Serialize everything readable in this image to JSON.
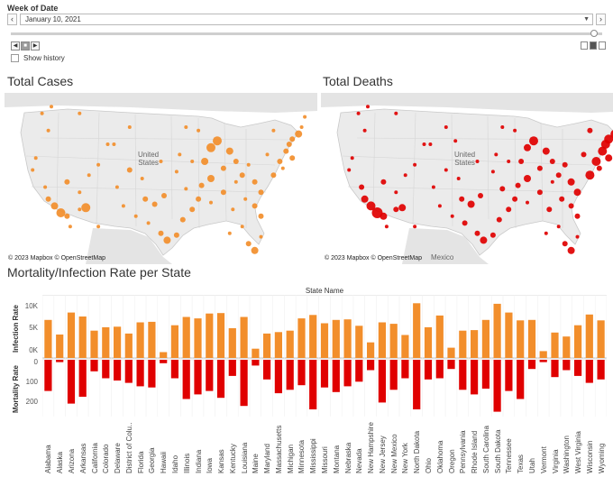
{
  "filter": {
    "title": "Week of Date",
    "selected_value": "January 10, 2021",
    "prev_label": "‹",
    "next_label": "›",
    "show_history_label": "Show history",
    "show_history_checked": false,
    "slider_position": 1.0
  },
  "maps": {
    "cases_title": "Total Cases",
    "deaths_title": "Total Deaths",
    "credit": "© 2023 Mapbox © OpenStreetMap",
    "country_label_line1": "United",
    "country_label_line2": "States",
    "mexico_label": "Mexico",
    "cases_color": "#f28e2b",
    "deaths_color": "#e00000",
    "land_color": "#ebebeb",
    "water_color": "#ffffff"
  },
  "bars_section": {
    "title": "Mortality/Infection Rate per State",
    "column_header": "State Name",
    "infection_axis_title": "Infection Rate",
    "mortality_axis_title": "Mortality Rate",
    "infection_ticks": [
      "10K",
      "5K",
      "0K"
    ],
    "mortality_ticks": [
      "0",
      "100",
      "200"
    ]
  },
  "chart_data": {
    "type": "bar",
    "title": "Mortality/Infection Rate per State",
    "xlabel": "State Name",
    "categories": [
      "Alabama",
      "Alaska",
      "Arizona",
      "Arkansas",
      "California",
      "Colorado",
      "Delaware",
      "District of Colu..",
      "Florida",
      "Georgia",
      "Hawaii",
      "Idaho",
      "Illinois",
      "Indiana",
      "Iowa",
      "Kansas",
      "Kentucky",
      "Louisiana",
      "Maine",
      "Maryland",
      "Massachusetts",
      "Michigan",
      "Minnesota",
      "Mississippi",
      "Missouri",
      "Montana",
      "Nebraska",
      "Nevada",
      "New Hampshire",
      "New Jersey",
      "New Mexico",
      "New York",
      "North Dakota",
      "Ohio",
      "Oklahoma",
      "Oregon",
      "Pennsylvania",
      "Rhode Island",
      "South Carolina",
      "South Dakota",
      "Tennessee",
      "Texas",
      "Utah",
      "Vermont",
      "Virginia",
      "Washington",
      "West Virginia",
      "Wisconsin",
      "Wyoming"
    ],
    "series": [
      {
        "name": "Infection Rate",
        "color": "#f28e2b",
        "ylim": [
          0,
          12000
        ],
        "values": [
          7800,
          4800,
          9300,
          8500,
          5600,
          6300,
          6400,
          5000,
          7300,
          7400,
          1200,
          6700,
          8400,
          8100,
          9100,
          9200,
          6100,
          8400,
          1900,
          5000,
          5300,
          5600,
          8100,
          8800,
          7100,
          7800,
          7900,
          6600,
          3200,
          7300,
          7000,
          4700,
          11200,
          6300,
          8700,
          2100,
          5600,
          5700,
          7800,
          11100,
          9300,
          7700,
          7800,
          1400,
          5200,
          4400,
          6700,
          8900,
          7700
        ]
      },
      {
        "name": "Mortality Rate",
        "color": "#e00000",
        "ylim": [
          0,
          250
        ],
        "values": [
          135,
          10,
          190,
          160,
          50,
          80,
          90,
          100,
          115,
          120,
          15,
          80,
          170,
          150,
          135,
          165,
          70,
          200,
          25,
          85,
          145,
          130,
          110,
          215,
          120,
          140,
          115,
          95,
          45,
          185,
          130,
          80,
          215,
          85,
          80,
          40,
          130,
          150,
          125,
          225,
          135,
          170,
          40,
          10,
          75,
          45,
          70,
          100,
          85
        ]
      }
    ]
  },
  "map_points": {
    "cases": [
      [
        0.12,
        0.12,
        2
      ],
      [
        0.15,
        0.08,
        2
      ],
      [
        0.14,
        0.22,
        2
      ],
      [
        0.1,
        0.38,
        2
      ],
      [
        0.09,
        0.45,
        2
      ],
      [
        0.13,
        0.55,
        2
      ],
      [
        0.14,
        0.62,
        3
      ],
      [
        0.16,
        0.66,
        4
      ],
      [
        0.18,
        0.7,
        5
      ],
      [
        0.2,
        0.72,
        3
      ],
      [
        0.21,
        0.78,
        2
      ],
      [
        0.24,
        0.68,
        2
      ],
      [
        0.26,
        0.67,
        5
      ],
      [
        0.24,
        0.58,
        2
      ],
      [
        0.2,
        0.52,
        3
      ],
      [
        0.3,
        0.42,
        2
      ],
      [
        0.33,
        0.3,
        2
      ],
      [
        0.27,
        0.48,
        2
      ],
      [
        0.36,
        0.55,
        2
      ],
      [
        0.4,
        0.45,
        3
      ],
      [
        0.45,
        0.62,
        3
      ],
      [
        0.48,
        0.65,
        3
      ],
      [
        0.51,
        0.6,
        3
      ],
      [
        0.46,
        0.76,
        2
      ],
      [
        0.5,
        0.82,
        3
      ],
      [
        0.52,
        0.86,
        4
      ],
      [
        0.55,
        0.83,
        3
      ],
      [
        0.57,
        0.74,
        3
      ],
      [
        0.6,
        0.68,
        3
      ],
      [
        0.62,
        0.62,
        3
      ],
      [
        0.58,
        0.56,
        2
      ],
      [
        0.63,
        0.54,
        3
      ],
      [
        0.66,
        0.5,
        4
      ],
      [
        0.64,
        0.4,
        4
      ],
      [
        0.66,
        0.32,
        5
      ],
      [
        0.68,
        0.28,
        5
      ],
      [
        0.72,
        0.34,
        4
      ],
      [
        0.74,
        0.4,
        3
      ],
      [
        0.7,
        0.44,
        3
      ],
      [
        0.76,
        0.48,
        3
      ],
      [
        0.8,
        0.52,
        3
      ],
      [
        0.82,
        0.58,
        3
      ],
      [
        0.86,
        0.48,
        3
      ],
      [
        0.88,
        0.4,
        3
      ],
      [
        0.9,
        0.34,
        3
      ],
      [
        0.91,
        0.3,
        3
      ],
      [
        0.92,
        0.27,
        3
      ],
      [
        0.94,
        0.24,
        4
      ],
      [
        0.95,
        0.2,
        2
      ],
      [
        0.92,
        0.38,
        3
      ],
      [
        0.89,
        0.44,
        2
      ],
      [
        0.84,
        0.36,
        2
      ],
      [
        0.78,
        0.42,
        2
      ],
      [
        0.74,
        0.52,
        2
      ],
      [
        0.7,
        0.58,
        3
      ],
      [
        0.66,
        0.64,
        2
      ],
      [
        0.73,
        0.68,
        2
      ],
      [
        0.77,
        0.62,
        2
      ],
      [
        0.8,
        0.66,
        3
      ],
      [
        0.82,
        0.72,
        3
      ],
      [
        0.76,
        0.78,
        2
      ],
      [
        0.72,
        0.82,
        2
      ],
      [
        0.78,
        0.88,
        3
      ],
      [
        0.8,
        0.92,
        4
      ],
      [
        0.82,
        0.84,
        2
      ],
      [
        0.6,
        0.4,
        2
      ],
      [
        0.56,
        0.36,
        2
      ],
      [
        0.62,
        0.22,
        2
      ],
      [
        0.58,
        0.2,
        2
      ],
      [
        0.55,
        0.46,
        2
      ],
      [
        0.5,
        0.4,
        2
      ],
      [
        0.44,
        0.5,
        2
      ],
      [
        0.38,
        0.66,
        2
      ],
      [
        0.42,
        0.72,
        2
      ],
      [
        0.35,
        0.3,
        2
      ],
      [
        0.4,
        0.2,
        2
      ],
      [
        0.24,
        0.12,
        2
      ],
      [
        0.3,
        0.78,
        2
      ],
      [
        0.86,
        0.22,
        2
      ],
      [
        0.96,
        0.14,
        2
      ]
    ],
    "deaths": [
      [
        0.12,
        0.12,
        2
      ],
      [
        0.15,
        0.08,
        2
      ],
      [
        0.14,
        0.22,
        2
      ],
      [
        0.1,
        0.38,
        2
      ],
      [
        0.09,
        0.45,
        2
      ],
      [
        0.13,
        0.55,
        3
      ],
      [
        0.14,
        0.62,
        4
      ],
      [
        0.16,
        0.66,
        5
      ],
      [
        0.18,
        0.7,
        6
      ],
      [
        0.2,
        0.72,
        4
      ],
      [
        0.21,
        0.78,
        2
      ],
      [
        0.24,
        0.68,
        3
      ],
      [
        0.26,
        0.67,
        4
      ],
      [
        0.24,
        0.58,
        2
      ],
      [
        0.2,
        0.52,
        3
      ],
      [
        0.3,
        0.42,
        2
      ],
      [
        0.33,
        0.3,
        2
      ],
      [
        0.27,
        0.48,
        2
      ],
      [
        0.36,
        0.55,
        2
      ],
      [
        0.4,
        0.45,
        2
      ],
      [
        0.45,
        0.62,
        3
      ],
      [
        0.48,
        0.65,
        4
      ],
      [
        0.51,
        0.6,
        3
      ],
      [
        0.46,
        0.76,
        3
      ],
      [
        0.5,
        0.82,
        3
      ],
      [
        0.52,
        0.86,
        4
      ],
      [
        0.55,
        0.83,
        3
      ],
      [
        0.57,
        0.74,
        3
      ],
      [
        0.6,
        0.68,
        3
      ],
      [
        0.62,
        0.62,
        3
      ],
      [
        0.58,
        0.56,
        3
      ],
      [
        0.63,
        0.54,
        3
      ],
      [
        0.66,
        0.5,
        4
      ],
      [
        0.64,
        0.4,
        3
      ],
      [
        0.66,
        0.32,
        4
      ],
      [
        0.68,
        0.28,
        5
      ],
      [
        0.72,
        0.34,
        4
      ],
      [
        0.74,
        0.4,
        3
      ],
      [
        0.7,
        0.44,
        3
      ],
      [
        0.76,
        0.48,
        3
      ],
      [
        0.8,
        0.52,
        4
      ],
      [
        0.82,
        0.58,
        4
      ],
      [
        0.86,
        0.48,
        5
      ],
      [
        0.88,
        0.4,
        5
      ],
      [
        0.9,
        0.34,
        5
      ],
      [
        0.91,
        0.3,
        5
      ],
      [
        0.92,
        0.27,
        5
      ],
      [
        0.94,
        0.24,
        5
      ],
      [
        0.95,
        0.2,
        3
      ],
      [
        0.92,
        0.38,
        4
      ],
      [
        0.89,
        0.44,
        3
      ],
      [
        0.84,
        0.36,
        3
      ],
      [
        0.78,
        0.42,
        3
      ],
      [
        0.74,
        0.52,
        2
      ],
      [
        0.7,
        0.58,
        3
      ],
      [
        0.66,
        0.64,
        2
      ],
      [
        0.73,
        0.68,
        3
      ],
      [
        0.77,
        0.62,
        3
      ],
      [
        0.8,
        0.66,
        3
      ],
      [
        0.82,
        0.72,
        3
      ],
      [
        0.76,
        0.78,
        2
      ],
      [
        0.72,
        0.82,
        2
      ],
      [
        0.78,
        0.88,
        3
      ],
      [
        0.8,
        0.92,
        4
      ],
      [
        0.82,
        0.84,
        2
      ],
      [
        0.6,
        0.4,
        2
      ],
      [
        0.56,
        0.36,
        2
      ],
      [
        0.62,
        0.22,
        2
      ],
      [
        0.58,
        0.2,
        2
      ],
      [
        0.55,
        0.46,
        2
      ],
      [
        0.5,
        0.4,
        2
      ],
      [
        0.44,
        0.5,
        2
      ],
      [
        0.38,
        0.66,
        2
      ],
      [
        0.42,
        0.72,
        2
      ],
      [
        0.35,
        0.3,
        2
      ],
      [
        0.4,
        0.2,
        2
      ],
      [
        0.24,
        0.12,
        2
      ],
      [
        0.3,
        0.78,
        2
      ],
      [
        0.86,
        0.22,
        3
      ],
      [
        0.96,
        0.14,
        2
      ],
      [
        0.43,
        0.28,
        2
      ]
    ]
  }
}
